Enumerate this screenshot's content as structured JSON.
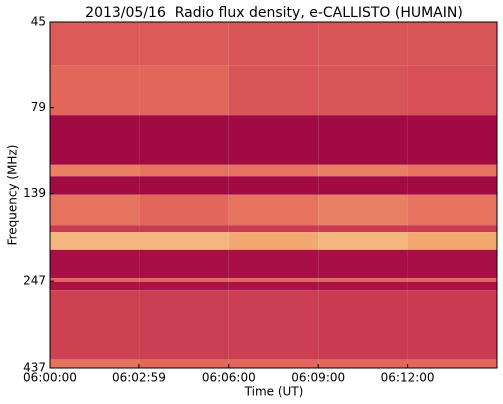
{
  "chart_data": {
    "type": "spectrogram",
    "title": "2013/05/16  Radio flux density, e-CALLISTO (HUMAIN)",
    "x_label": "Time (UT)",
    "y_label": "Frequency (MHz)",
    "xlim": [
      "06:00:00",
      "06:15:00"
    ],
    "xticks": [
      "06:00:00",
      "06:02:59",
      "06:06:00",
      "06:09:00",
      "06:12:00"
    ],
    "ylim": [
      45,
      437
    ],
    "yticks": [
      45,
      79,
      139,
      247,
      437
    ],
    "log_y": true,
    "y_inverted": true,
    "colormap": [
      "#9a0040",
      "#c43050",
      "#e2665a",
      "#f3a872",
      "#fde9b0"
    ],
    "time_bins": [
      "06:00:00",
      "06:03:00",
      "06:06:00",
      "06:09:00",
      "06:12:00",
      "06:15:00"
    ],
    "bands": [
      {
        "from": 45,
        "to": 60,
        "values": [
          0.45,
          0.45,
          0.42,
          0.42,
          0.42
        ]
      },
      {
        "from": 60,
        "to": 83,
        "values": [
          0.5,
          0.5,
          0.42,
          0.42,
          0.4
        ]
      },
      {
        "from": 83,
        "to": 115,
        "values": [
          0.05,
          0.05,
          0.05,
          0.05,
          0.05
        ]
      },
      {
        "from": 115,
        "to": 124,
        "values": [
          0.6,
          0.55,
          0.55,
          0.6,
          0.55
        ]
      },
      {
        "from": 124,
        "to": 140,
        "values": [
          0.05,
          0.05,
          0.05,
          0.05,
          0.05
        ]
      },
      {
        "from": 140,
        "to": 171,
        "values": [
          0.55,
          0.5,
          0.55,
          0.6,
          0.55
        ]
      },
      {
        "from": 171,
        "to": 179,
        "values": [
          0.3,
          0.3,
          0.3,
          0.3,
          0.3
        ]
      },
      {
        "from": 179,
        "to": 201,
        "values": [
          0.8,
          0.8,
          0.75,
          0.8,
          0.75
        ]
      },
      {
        "from": 201,
        "to": 242,
        "values": [
          0.08,
          0.08,
          0.08,
          0.08,
          0.08
        ]
      },
      {
        "from": 242,
        "to": 248,
        "values": [
          0.5,
          0.5,
          0.5,
          0.5,
          0.5
        ]
      },
      {
        "from": 248,
        "to": 262,
        "values": [
          0.1,
          0.1,
          0.1,
          0.1,
          0.1
        ]
      },
      {
        "from": 262,
        "to": 413,
        "values": [
          0.33,
          0.32,
          0.32,
          0.3,
          0.3
        ]
      },
      {
        "from": 413,
        "to": 437,
        "values": [
          0.55,
          0.5,
          0.5,
          0.5,
          0.5
        ]
      }
    ]
  }
}
